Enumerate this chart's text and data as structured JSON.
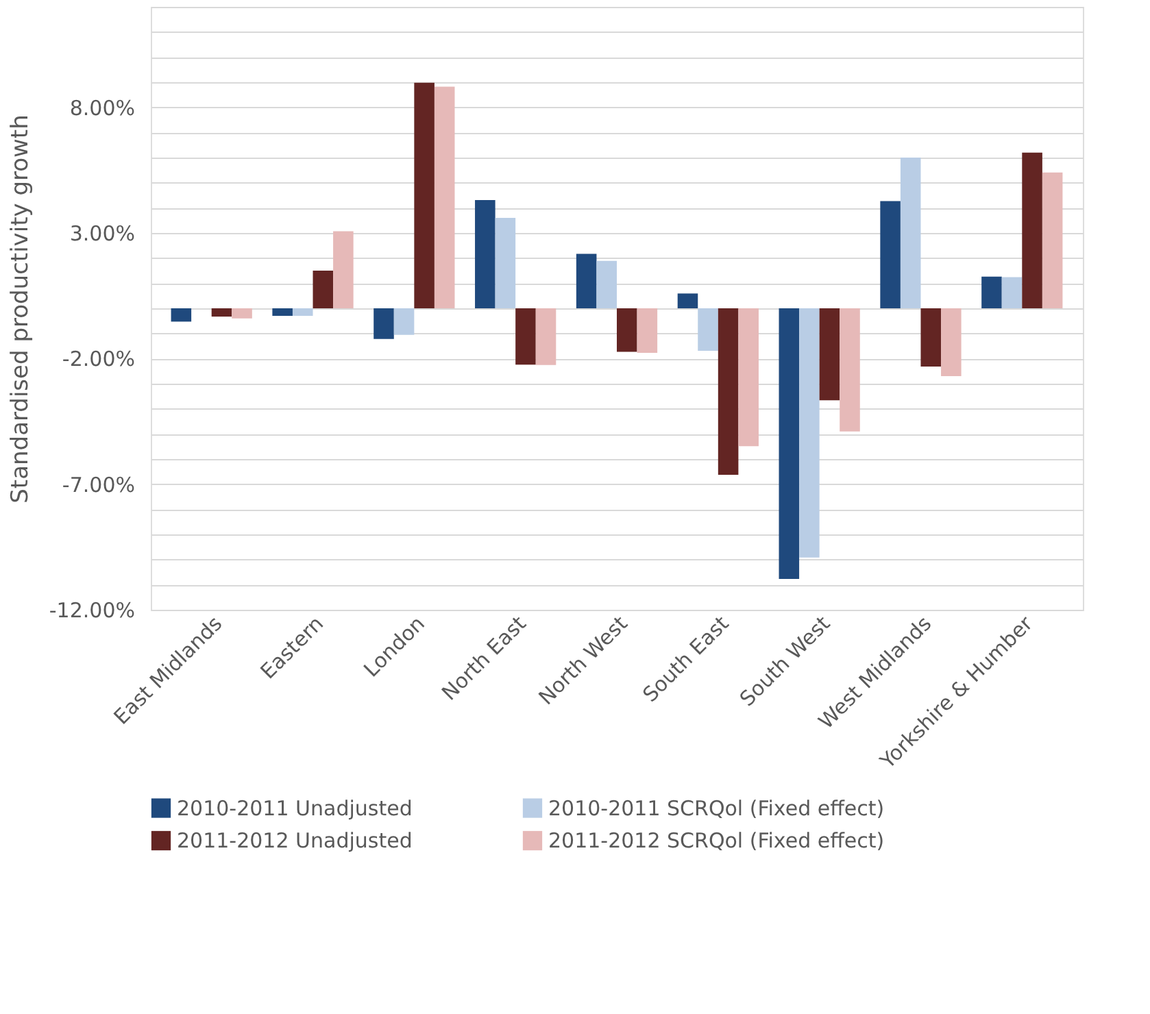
{
  "chart_data": {
    "type": "bar",
    "ylabel": "Standardised productivity growth",
    "categories": [
      "East Midlands",
      "Eastern",
      "London",
      "North East",
      "North West",
      "South East",
      "South West",
      "West Midlands",
      "Yorkshire & Humber"
    ],
    "series": [
      {
        "name": "2010-2011 Unadjusted",
        "color": "#1f497d",
        "values": [
          -0.53,
          -0.3,
          -1.22,
          4.31,
          2.17,
          0.59,
          -10.77,
          4.27,
          1.26
        ]
      },
      {
        "name": "2010-2011 SCRQol (Fixed effect)",
        "color": "#b9cde5",
        "values": [
          0,
          -0.3,
          -1.06,
          3.6,
          1.89,
          -1.69,
          -9.92,
          6.0,
          1.24
        ]
      },
      {
        "name": "2011-2012 Unadjusted",
        "color": "#632523",
        "values": [
          -0.33,
          1.5,
          8.98,
          -2.24,
          -1.73,
          -6.63,
          -3.66,
          -2.32,
          6.2
        ]
      },
      {
        "name": "2011-2012 SCRQol (Fixed effect)",
        "color": "#e6b9b8",
        "values": [
          -0.4,
          3.07,
          8.82,
          -2.26,
          -1.77,
          -5.49,
          -4.9,
          -2.7,
          5.41
        ]
      }
    ],
    "ylim": [
      -12,
      12
    ],
    "yticks": [
      {
        "value": -12,
        "label": "-12.00%"
      },
      {
        "value": -11,
        "label": null
      },
      {
        "value": -10,
        "label": null
      },
      {
        "value": -9,
        "label": null
      },
      {
        "value": -8,
        "label": null
      },
      {
        "value": -7,
        "label": "-7.00%"
      },
      {
        "value": -6,
        "label": null
      },
      {
        "value": -5,
        "label": null
      },
      {
        "value": -4,
        "label": null
      },
      {
        "value": -3,
        "label": null
      },
      {
        "value": -2,
        "label": "-2.00%"
      },
      {
        "value": -1,
        "label": null
      },
      {
        "value": 0,
        "label": null
      },
      {
        "value": 1,
        "label": null
      },
      {
        "value": 2,
        "label": null
      },
      {
        "value": 3,
        "label": "3.00%"
      },
      {
        "value": 4,
        "label": null
      },
      {
        "value": 5,
        "label": null
      },
      {
        "value": 6,
        "label": null
      },
      {
        "value": 7,
        "label": null
      },
      {
        "value": 8,
        "label": "8.00%"
      },
      {
        "value": 9,
        "label": null
      },
      {
        "value": 10,
        "label": null
      },
      {
        "value": 11,
        "label": null
      },
      {
        "value": 12,
        "label": null
      }
    ],
    "grid": true,
    "legend": "bottom"
  }
}
